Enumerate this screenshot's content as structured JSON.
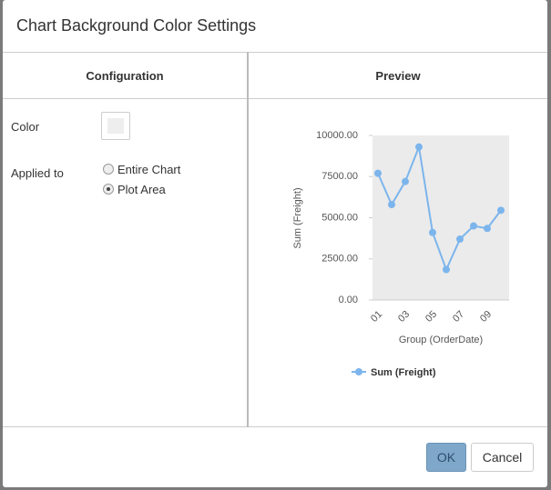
{
  "dialog": {
    "title": "Chart Background Color Settings",
    "configuration": {
      "header": "Configuration",
      "color_label": "Color",
      "applied_label": "Applied to",
      "options": [
        "Entire Chart",
        "Plot Area"
      ],
      "selected": "Plot Area"
    },
    "preview": {
      "header": "Preview"
    },
    "buttons": [
      "OK",
      "Cancel"
    ]
  },
  "chart_data": {
    "type": "line",
    "x_label": "Group (OrderDate)",
    "y_label": "Sum (Freight)",
    "categories": [
      "01",
      null,
      "03",
      null,
      "05",
      null,
      "07",
      null,
      "09",
      null
    ],
    "series": [
      {
        "name": "Sum (Freight)",
        "color": "#7cb5ec",
        "values": [
          7700,
          5800,
          7200,
          9300,
          4100,
          1850,
          3700,
          4500,
          4350,
          5450
        ]
      }
    ],
    "ylim": [
      0,
      10000
    ],
    "yticks": [
      {
        "value": 0,
        "label": "0.00"
      },
      {
        "value": 2500,
        "label": "2500.00"
      },
      {
        "value": 5000,
        "label": "5000.00"
      },
      {
        "value": 7500,
        "label": "7500.00"
      },
      {
        "value": 10000,
        "label": "10000.00"
      }
    ],
    "plot_background": "#ebebeb"
  }
}
